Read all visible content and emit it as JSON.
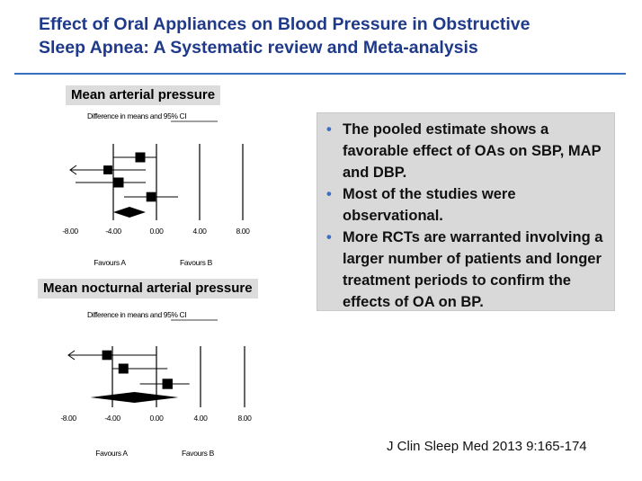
{
  "title_line1": "Effect of Oral Appliances on Blood Pressure in Obstructive",
  "title_line2": "Sleep Apnea: A Systematic review and Meta-analysis",
  "bullets": [
    "The pooled estimate shows a favorable effect of OAs on SBP, MAP and DBP.",
    "Most of the studies were observational.",
    "More RCTs are warranted involving a larger number of patients and longer treatment periods to confirm the effects of OA on BP."
  ],
  "citation": "J Clin Sleep Med 2013 9:165-174",
  "colors": {
    "title": "#1f3a8a",
    "rule": "#3b6fc3",
    "bullet": "#3b6fc3",
    "box": "#d9d9d9"
  },
  "chart_data": [
    {
      "type": "forest",
      "title": "Mean arterial pressure",
      "header": "Difference in means and 95% CI",
      "ticks": [
        "-8.00",
        "-4.00",
        "0.00",
        "4.00",
        "8.00"
      ],
      "xlim": [
        -8,
        8
      ],
      "reference_lines": [
        0,
        4,
        8
      ],
      "favours_left": "Favours A",
      "favours_right": "Favours B",
      "studies": [
        {
          "mean": -1.5,
          "low": -4.0,
          "high": 0.0,
          "weight": 1.0
        },
        {
          "mean": -4.5,
          "low": -8.0,
          "high": -1.0,
          "weight": 0.7,
          "arrow_left": true
        },
        {
          "mean": -3.5,
          "low": -7.5,
          "high": -1.0,
          "weight": 1.0
        },
        {
          "mean": -0.5,
          "low": -3.0,
          "high": 2.0,
          "weight": 0.9
        }
      ],
      "pooled": {
        "mean": -2.5,
        "low": -4.0,
        "high": -1.0
      }
    },
    {
      "type": "forest",
      "title": "Mean nocturnal arterial pressure",
      "header": "Difference in means and 95% CI",
      "ticks": [
        "-8.00",
        "-4.00",
        "0.00",
        "4.00",
        "8.00"
      ],
      "xlim": [
        -8,
        8
      ],
      "reference_lines": [
        0,
        4,
        8
      ],
      "favours_left": "Favours A",
      "favours_right": "Favours B",
      "studies": [
        {
          "mean": -4.5,
          "low": -8.0,
          "high": 0.0,
          "weight": 0.9,
          "arrow_left": true
        },
        {
          "mean": -3.0,
          "low": -4.0,
          "high": 1.0,
          "weight": 1.0
        },
        {
          "mean": 1.0,
          "low": -1.5,
          "high": 3.0,
          "weight": 1.1
        }
      ],
      "pooled": {
        "mean": -2.0,
        "low": -6.0,
        "high": 2.0
      }
    }
  ]
}
